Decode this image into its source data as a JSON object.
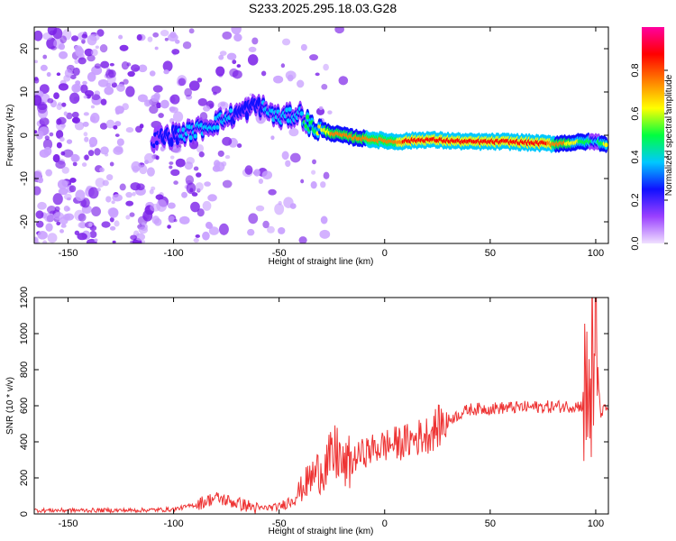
{
  "title": "S233.2025.295.18.03.G28",
  "chart_data": [
    {
      "type": "heatmap",
      "xlabel": "Height of straight line (km)",
      "ylabel": "Frequency (Hz)",
      "xlim": [
        -166,
        106
      ],
      "ylim": [
        -25,
        25
      ],
      "xticks": [
        -150,
        -100,
        -50,
        0,
        50,
        100
      ],
      "yticks": [
        -20,
        -10,
        0,
        10,
        20
      ],
      "colorbar": {
        "label": "Normalized spectral amplitude",
        "range": [
          0,
          1
        ],
        "ticks": [
          0.0,
          0.2,
          0.4,
          0.6,
          0.8
        ],
        "colormap": [
          "#f0e0ff",
          "#9a40ff",
          "#1010ff",
          "#00c8ff",
          "#00ff40",
          "#ffff00",
          "#ff8000",
          "#ff0000",
          "#ff00a0"
        ]
      },
      "ridge": {
        "x": [
          -110,
          -100,
          -90,
          -80,
          -70,
          -60,
          -50,
          -40,
          -35,
          -25,
          -15,
          -5,
          5,
          20,
          40,
          60,
          80,
          95,
          100,
          105
        ],
        "freq": [
          -1,
          0,
          1,
          3,
          5,
          7,
          4,
          5,
          2,
          0.5,
          -0.5,
          -1,
          -1.5,
          -1,
          -1.5,
          -1.5,
          -2,
          -1.5,
          -1.5,
          -2
        ],
        "amplitude": [
          0.25,
          0.3,
          0.35,
          0.35,
          0.3,
          0.3,
          0.35,
          0.4,
          0.5,
          0.7,
          0.75,
          0.8,
          0.8,
          0.85,
          0.9,
          0.9,
          0.8,
          0.5,
          0.4,
          0.6
        ]
      }
    },
    {
      "type": "line",
      "xlabel": "Height of straight line (km)",
      "ylabel": "SNR (10 * v/v)",
      "xlim": [
        -166,
        106
      ],
      "ylim": [
        0,
        1200
      ],
      "xticks": [
        -150,
        -100,
        -50,
        0,
        50,
        100
      ],
      "yticks": [
        0,
        200,
        400,
        600,
        800,
        1000,
        1200
      ],
      "color": "#ee3333",
      "trend": {
        "x": [
          -166,
          -120,
          -100,
          -90,
          -80,
          -70,
          -60,
          -50,
          -45,
          -40,
          -35,
          -30,
          -25,
          -22,
          -20,
          -15,
          -10,
          -5,
          0,
          10,
          20,
          30,
          40,
          60,
          80,
          95,
          97,
          98,
          99,
          100,
          102,
          106
        ],
        "y": [
          20,
          20,
          25,
          50,
          90,
          60,
          30,
          40,
          70,
          130,
          200,
          250,
          300,
          350,
          250,
          300,
          340,
          360,
          380,
          400,
          440,
          520,
          580,
          590,
          595,
          600,
          700,
          900,
          400,
          1100,
          560,
          590
        ]
      }
    }
  ]
}
